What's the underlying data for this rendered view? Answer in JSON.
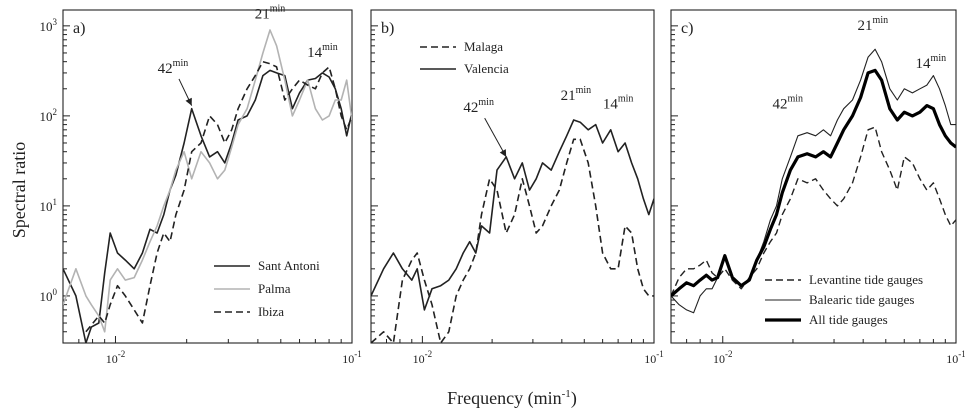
{
  "figure": {
    "ylabel": "Spectral ratio",
    "xlabel": "Frequency (min",
    "xlabel_sup": "-1",
    "xlabel_tail": ")"
  },
  "chart_data": [
    {
      "type": "line",
      "panel_label": "a)",
      "x_scale": "log",
      "y_scale": "log",
      "xlim": [
        0.006,
        0.1
      ],
      "ylim": [
        0.3,
        1500
      ],
      "x_ticks": [
        {
          "value": 0.01,
          "base": "10",
          "exp": "-2"
        },
        {
          "value": 0.1,
          "base": "10",
          "exp": "-1"
        }
      ],
      "y_ticks": [
        {
          "value": 1,
          "base": "10",
          "exp": "0"
        },
        {
          "value": 10,
          "base": "10",
          "exp": "1"
        },
        {
          "value": 100,
          "base": "10",
          "exp": "2"
        },
        {
          "value": 1000,
          "base": "10",
          "exp": "3"
        }
      ],
      "legend_position": "bottom-right",
      "annotations": [
        {
          "text": "42",
          "sup": "min",
          "x": 0.0175,
          "y": 300,
          "arrow_to": [
            0.021,
            130
          ]
        },
        {
          "text": "21",
          "sup": "min",
          "x": 0.045,
          "y": 1200
        },
        {
          "text": "14",
          "sup": "min",
          "x": 0.075,
          "y": 450
        }
      ],
      "series": [
        {
          "name": "Sant Antoni",
          "style": "solid",
          "color": "#222222",
          "width": 1.6,
          "x": [
            0.006,
            0.0068,
            0.0075,
            0.0079,
            0.0085,
            0.009,
            0.0095,
            0.0102,
            0.011,
            0.012,
            0.013,
            0.014,
            0.015,
            0.016,
            0.017,
            0.018,
            0.0195,
            0.021,
            0.023,
            0.025,
            0.027,
            0.029,
            0.031,
            0.033,
            0.036,
            0.039,
            0.042,
            0.045,
            0.048,
            0.052,
            0.056,
            0.06,
            0.065,
            0.07,
            0.075,
            0.08,
            0.085,
            0.09,
            0.095,
            0.1
          ],
          "y": [
            2.0,
            1.0,
            0.3,
            0.45,
            0.5,
            1.8,
            5.0,
            3.0,
            2.5,
            2.0,
            3.0,
            5.5,
            5.0,
            8.0,
            15,
            22,
            50,
            120,
            60,
            35,
            40,
            30,
            50,
            90,
            100,
            150,
            280,
            320,
            300,
            280,
            120,
            180,
            250,
            260,
            300,
            270,
            200,
            120,
            60,
            110
          ]
        },
        {
          "name": "Palma",
          "style": "solid",
          "color": "#b3b3b3",
          "width": 1.6,
          "x": [
            0.006,
            0.0068,
            0.0075,
            0.0079,
            0.0085,
            0.009,
            0.0095,
            0.0102,
            0.011,
            0.012,
            0.013,
            0.014,
            0.015,
            0.016,
            0.017,
            0.018,
            0.0195,
            0.021,
            0.023,
            0.025,
            0.027,
            0.029,
            0.031,
            0.033,
            0.036,
            0.039,
            0.042,
            0.045,
            0.048,
            0.052,
            0.056,
            0.06,
            0.065,
            0.07,
            0.075,
            0.08,
            0.085,
            0.09,
            0.095,
            0.1
          ],
          "y": [
            0.8,
            2.0,
            1.0,
            0.8,
            0.6,
            0.4,
            1.5,
            2.0,
            1.5,
            1.6,
            2.5,
            4.0,
            6.0,
            10,
            15,
            25,
            40,
            20,
            40,
            30,
            20,
            25,
            45,
            80,
            120,
            250,
            500,
            900,
            600,
            250,
            100,
            150,
            250,
            120,
            90,
            100,
            150,
            150,
            250,
            90
          ]
        },
        {
          "name": "Ibiza",
          "style": "dashed",
          "color": "#222222",
          "width": 1.6,
          "x": [
            0.0075,
            0.0085,
            0.009,
            0.0095,
            0.0102,
            0.011,
            0.012,
            0.013,
            0.014,
            0.015,
            0.016,
            0.017,
            0.018,
            0.0195,
            0.021,
            0.023,
            0.025,
            0.027,
            0.029,
            0.031,
            0.033,
            0.036,
            0.039,
            0.042,
            0.045,
            0.048,
            0.052,
            0.056,
            0.06,
            0.065,
            0.07,
            0.075,
            0.08,
            0.085,
            0.09,
            0.095,
            0.1
          ],
          "y": [
            0.4,
            0.6,
            0.5,
            0.8,
            1.3,
            1.0,
            0.7,
            0.5,
            1.3,
            3.0,
            5.0,
            4.0,
            8.0,
            15,
            40,
            50,
            100,
            80,
            50,
            70,
            120,
            200,
            280,
            400,
            380,
            350,
            150,
            200,
            250,
            220,
            200,
            300,
            350,
            200,
            100,
            70,
            100
          ]
        }
      ]
    },
    {
      "type": "line",
      "panel_label": "b)",
      "x_scale": "log",
      "y_scale": "log",
      "xlim": [
        0.006,
        0.1
      ],
      "ylim": [
        0.3,
        1500
      ],
      "x_ticks": [
        {
          "value": 0.01,
          "base": "10",
          "exp": "-2"
        },
        {
          "value": 0.1,
          "base": "10",
          "exp": "-1"
        }
      ],
      "legend_position": "top-left",
      "annotations": [
        {
          "text": "42",
          "sup": "min",
          "x": 0.0175,
          "y": 110,
          "arrow_to": [
            0.023,
            35
          ]
        },
        {
          "text": "21",
          "sup": "min",
          "x": 0.046,
          "y": 150
        },
        {
          "text": "14",
          "sup": "min",
          "x": 0.07,
          "y": 120
        }
      ],
      "series": [
        {
          "name": "Malaga",
          "style": "dashed",
          "color": "#222222",
          "width": 1.6,
          "x": [
            0.006,
            0.0068,
            0.0075,
            0.0082,
            0.009,
            0.0095,
            0.0102,
            0.011,
            0.012,
            0.013,
            0.014,
            0.015,
            0.016,
            0.017,
            0.018,
            0.0195,
            0.021,
            0.023,
            0.025,
            0.027,
            0.029,
            0.031,
            0.033,
            0.036,
            0.039,
            0.042,
            0.045,
            0.048,
            0.052,
            0.056,
            0.06,
            0.065,
            0.07,
            0.075,
            0.08,
            0.085,
            0.09,
            0.095,
            0.1
          ],
          "y": [
            0.3,
            0.4,
            0.3,
            1.5,
            2.5,
            3.0,
            1.5,
            0.8,
            0.3,
            0.4,
            1.0,
            1.5,
            2.0,
            3.0,
            8.0,
            20,
            15,
            5.0,
            8.0,
            20,
            10,
            5.0,
            6.0,
            10,
            15,
            30,
            55,
            55,
            30,
            10,
            3.0,
            2.0,
            2.0,
            6.0,
            5.0,
            2.0,
            1.2,
            1.0,
            1.0
          ]
        },
        {
          "name": "Valencia",
          "style": "solid",
          "color": "#222222",
          "width": 1.6,
          "x": [
            0.006,
            0.0068,
            0.0075,
            0.0082,
            0.009,
            0.0095,
            0.0102,
            0.011,
            0.012,
            0.013,
            0.014,
            0.015,
            0.016,
            0.017,
            0.018,
            0.0195,
            0.021,
            0.023,
            0.025,
            0.027,
            0.029,
            0.031,
            0.033,
            0.036,
            0.039,
            0.042,
            0.045,
            0.048,
            0.052,
            0.056,
            0.06,
            0.065,
            0.07,
            0.075,
            0.08,
            0.085,
            0.09,
            0.095,
            0.1
          ],
          "y": [
            1.0,
            2.0,
            3.0,
            2.0,
            1.5,
            2.0,
            0.7,
            1.2,
            1.3,
            1.5,
            2.0,
            3.0,
            4.0,
            3.0,
            6.0,
            5.0,
            25,
            35,
            20,
            30,
            15,
            20,
            30,
            25,
            40,
            60,
            90,
            85,
            70,
            80,
            50,
            70,
            40,
            50,
            30,
            20,
            12,
            8.0,
            12
          ]
        }
      ]
    },
    {
      "type": "line",
      "panel_label": "c)",
      "x_scale": "log",
      "y_scale": "log",
      "xlim": [
        0.006,
        0.1
      ],
      "ylim": [
        0.3,
        1500
      ],
      "x_ticks": [
        {
          "value": 0.01,
          "base": "10",
          "exp": "-2"
        },
        {
          "value": 0.1,
          "base": "10",
          "exp": "-1"
        }
      ],
      "legend_position": "bottom-right",
      "annotations": [
        {
          "text": "42",
          "sup": "min",
          "x": 0.019,
          "y": 120
        },
        {
          "text": "21",
          "sup": "min",
          "x": 0.044,
          "y": 900
        },
        {
          "text": "14",
          "sup": "min",
          "x": 0.078,
          "y": 340
        }
      ],
      "series": [
        {
          "name": "Levantine tide gauges",
          "style": "dashed",
          "color": "#222222",
          "width": 1.4,
          "x": [
            0.006,
            0.0065,
            0.007,
            0.0075,
            0.008,
            0.0085,
            0.009,
            0.0095,
            0.0102,
            0.011,
            0.012,
            0.013,
            0.014,
            0.015,
            0.016,
            0.017,
            0.018,
            0.0195,
            0.021,
            0.023,
            0.025,
            0.027,
            0.029,
            0.031,
            0.033,
            0.036,
            0.039,
            0.042,
            0.045,
            0.048,
            0.052,
            0.056,
            0.06,
            0.065,
            0.07,
            0.075,
            0.08,
            0.085,
            0.09,
            0.095,
            0.1
          ],
          "y": [
            1.0,
            1.6,
            2.0,
            2.0,
            2.2,
            2.5,
            1.8,
            1.6,
            2.0,
            1.5,
            1.2,
            1.6,
            2.0,
            3.0,
            4.0,
            5.0,
            8.0,
            12,
            20,
            18,
            20,
            15,
            12,
            10,
            12,
            18,
            35,
            70,
            75,
            40,
            25,
            15,
            35,
            30,
            20,
            15,
            18,
            12,
            8.0,
            6.0,
            7.0
          ]
        },
        {
          "name": "Balearic tide gauges",
          "style": "solid",
          "color": "#222222",
          "width": 1.1,
          "x": [
            0.006,
            0.0065,
            0.007,
            0.0075,
            0.008,
            0.0085,
            0.009,
            0.0095,
            0.0102,
            0.011,
            0.012,
            0.013,
            0.014,
            0.015,
            0.016,
            0.017,
            0.018,
            0.0195,
            0.021,
            0.023,
            0.025,
            0.027,
            0.029,
            0.031,
            0.033,
            0.036,
            0.039,
            0.042,
            0.045,
            0.048,
            0.052,
            0.056,
            0.06,
            0.065,
            0.07,
            0.075,
            0.08,
            0.085,
            0.09,
            0.095,
            0.1
          ],
          "y": [
            1.0,
            0.8,
            0.7,
            0.65,
            1.0,
            1.2,
            1.2,
            1.6,
            2.8,
            1.5,
            1.3,
            1.5,
            2.5,
            4.0,
            7.0,
            10,
            20,
            35,
            60,
            65,
            60,
            70,
            60,
            90,
            120,
            150,
            250,
            450,
            550,
            400,
            200,
            150,
            200,
            180,
            200,
            220,
            280,
            200,
            130,
            80,
            80
          ]
        },
        {
          "name": "All tide gauges",
          "style": "solid",
          "color": "#000000",
          "width": 3.2,
          "x": [
            0.006,
            0.0065,
            0.007,
            0.0075,
            0.008,
            0.0085,
            0.009,
            0.0095,
            0.0102,
            0.011,
            0.012,
            0.013,
            0.014,
            0.015,
            0.016,
            0.017,
            0.018,
            0.0195,
            0.021,
            0.023,
            0.025,
            0.027,
            0.029,
            0.031,
            0.033,
            0.036,
            0.039,
            0.042,
            0.045,
            0.048,
            0.052,
            0.056,
            0.06,
            0.065,
            0.07,
            0.075,
            0.08,
            0.085,
            0.09,
            0.095,
            0.1
          ],
          "y": [
            1.0,
            1.2,
            1.4,
            1.3,
            1.5,
            1.7,
            1.5,
            1.6,
            2.8,
            1.6,
            1.3,
            1.5,
            2.5,
            3.5,
            5.5,
            8.0,
            14,
            25,
            35,
            38,
            35,
            40,
            35,
            50,
            70,
            100,
            160,
            300,
            320,
            250,
            120,
            90,
            110,
            100,
            110,
            130,
            120,
            80,
            60,
            50,
            45
          ]
        }
      ]
    }
  ]
}
